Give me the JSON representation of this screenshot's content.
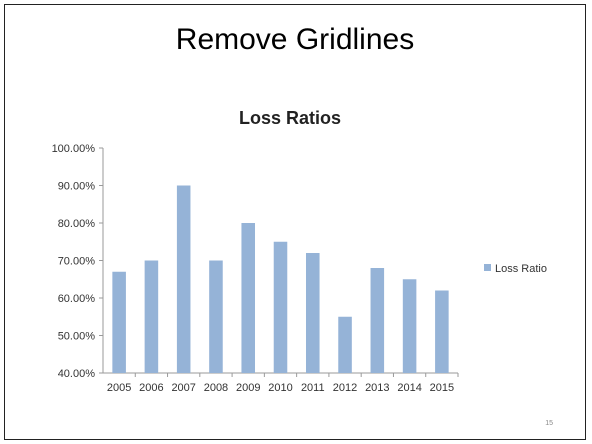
{
  "slide": {
    "title": "Remove Gridlines",
    "page_number": "15"
  },
  "colors": {
    "bar": "#95B3D7",
    "axis": "#9A9A9A",
    "text": "#333333"
  },
  "chart_data": {
    "type": "bar",
    "title": "Loss Ratios",
    "categories": [
      "2005",
      "2006",
      "2007",
      "2008",
      "2009",
      "2010",
      "2011",
      "2012",
      "2013",
      "2014",
      "2015"
    ],
    "series": [
      {
        "name": "Loss Ratio",
        "values": [
          0.67,
          0.7,
          0.9,
          0.7,
          0.8,
          0.75,
          0.72,
          0.55,
          0.68,
          0.65,
          0.62
        ]
      }
    ],
    "ylim": [
      0.4,
      1.0
    ],
    "yticks": [
      0.4,
      0.5,
      0.6,
      0.7,
      0.8,
      0.9,
      1.0
    ],
    "ytick_labels": [
      "40.00%",
      "50.00%",
      "60.00%",
      "70.00%",
      "80.00%",
      "90.00%",
      "100.00%"
    ],
    "grid": false,
    "legend_position": "right"
  }
}
